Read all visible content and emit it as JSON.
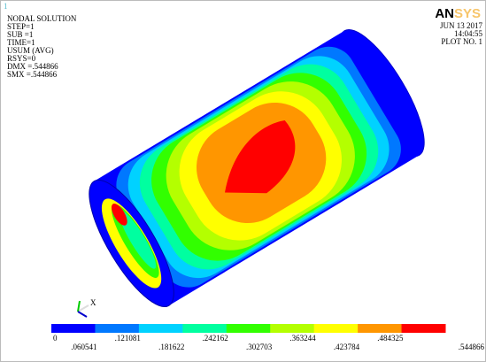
{
  "window_number": "1",
  "header": {
    "lines": [
      "NODAL SOLUTION",
      "STEP=1",
      "SUB =1",
      "TIME=1",
      "USUM      (AVG)",
      "RSYS=0",
      "DMX =.544866",
      "SMX =.544866"
    ],
    "date": "JUN 13 2017",
    "time": "14:04:55",
    "plot_no": "PLOT NO.   1",
    "logo_dark": "AN",
    "logo_light": "SYS"
  },
  "triad_label": "X",
  "legend": {
    "colors": [
      "#0000ff",
      "#0078ff",
      "#00d2ff",
      "#00ffa0",
      "#32ff00",
      "#b4ff00",
      "#ffff00",
      "#ff9600",
      "#ff0000"
    ],
    "labels": [
      "0",
      ".060541",
      ".121081",
      ".181622",
      ".242162",
      ".302703",
      ".363244",
      ".423784",
      ".484325",
      ".544866"
    ]
  }
}
